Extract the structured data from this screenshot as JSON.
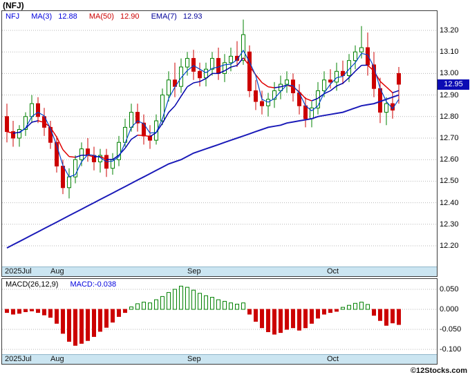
{
  "title": "(NFJ)",
  "watermark": "©12Stocks.com",
  "main_chart": {
    "legend": {
      "symbol": "NFJ",
      "ma3_label": "MA(3)",
      "ma3_value": "12.88",
      "ma50_label": "MA(50)",
      "ma50_value": "12.90",
      "ema7_label": "EMA(7)",
      "ema7_value": "12.93"
    },
    "last_price_label": "12.95",
    "y_ticks": [
      "13.20",
      "13.10",
      "13.00",
      "12.90",
      "12.80",
      "12.70",
      "12.60",
      "12.50",
      "12.40",
      "12.30",
      "12.20"
    ],
    "x_ticks": [
      {
        "label": "2025Jul",
        "x": 4
      },
      {
        "label": "Aug",
        "x": 70
      },
      {
        "label": "Sep",
        "x": 268
      },
      {
        "label": "Oct",
        "x": 470
      }
    ]
  },
  "macd_panel": {
    "legend_label": "MACD(26,12,9)",
    "legend_value": "MACD:-0.038",
    "y_ticks": [
      "0.050",
      "0.000",
      "-0.050",
      "-0.100"
    ]
  },
  "chart_data": {
    "type": "candlestick",
    "symbol": "NFJ",
    "title": "(NFJ)",
    "price_axis_range": [
      12.15,
      13.29
    ],
    "macd_axis_range": [
      -0.115,
      0.075
    ],
    "x_axis_months": [
      "2025Jul",
      "Aug",
      "Sep",
      "Oct"
    ],
    "last_close": 12.95,
    "indicators": {
      "ma3": 12.88,
      "ma50": 12.9,
      "ema7": 12.93,
      "macd_26_12_9": -0.038
    },
    "candles": [
      [
        12.8,
        12.86,
        12.68,
        12.73
      ],
      [
        12.73,
        12.78,
        12.66,
        12.7
      ],
      [
        12.7,
        12.76,
        12.66,
        12.74
      ],
      [
        12.74,
        12.82,
        12.71,
        12.8
      ],
      [
        12.8,
        12.9,
        12.77,
        12.86
      ],
      [
        12.86,
        12.89,
        12.77,
        12.8
      ],
      [
        12.8,
        12.84,
        12.71,
        12.75
      ],
      [
        12.75,
        12.78,
        12.65,
        12.68
      ],
      [
        12.68,
        12.71,
        12.54,
        12.57
      ],
      [
        12.57,
        12.6,
        12.44,
        12.47
      ],
      [
        12.47,
        12.56,
        12.42,
        12.52
      ],
      [
        12.52,
        12.62,
        12.49,
        12.6
      ],
      [
        12.6,
        12.68,
        12.57,
        12.65
      ],
      [
        12.65,
        12.7,
        12.59,
        12.62
      ],
      [
        12.62,
        12.66,
        12.55,
        12.59
      ],
      [
        12.59,
        12.65,
        12.54,
        12.62
      ],
      [
        12.62,
        12.65,
        12.52,
        12.56
      ],
      [
        12.56,
        12.63,
        12.53,
        12.6
      ],
      [
        12.6,
        12.71,
        12.57,
        12.68
      ],
      [
        12.68,
        12.79,
        12.66,
        12.75
      ],
      [
        12.75,
        12.86,
        12.73,
        12.82
      ],
      [
        12.82,
        12.86,
        12.73,
        12.77
      ],
      [
        12.77,
        12.81,
        12.67,
        12.71
      ],
      [
        12.71,
        12.76,
        12.65,
        12.69
      ],
      [
        12.69,
        12.81,
        12.67,
        12.78
      ],
      [
        12.78,
        12.93,
        12.76,
        12.9
      ],
      [
        12.9,
        13.01,
        12.87,
        12.97
      ],
      [
        12.97,
        13.05,
        12.89,
        12.94
      ],
      [
        12.94,
        13.07,
        12.91,
        13.03
      ],
      [
        13.03,
        13.1,
        12.99,
        13.07
      ],
      [
        13.07,
        13.11,
        12.97,
        13.01
      ],
      [
        13.01,
        13.05,
        12.94,
        12.98
      ],
      [
        12.98,
        13.05,
        12.94,
        13.02
      ],
      [
        13.02,
        13.1,
        12.99,
        13.07
      ],
      [
        13.07,
        13.12,
        12.97,
        13.0
      ],
      [
        13.0,
        13.09,
        12.96,
        13.05
      ],
      [
        13.05,
        13.12,
        13.01,
        13.08
      ],
      [
        13.08,
        13.15,
        13.03,
        13.06
      ],
      [
        13.06,
        13.25,
        13.04,
        13.18
      ],
      [
        13.1,
        13.13,
        12.89,
        12.92
      ],
      [
        12.92,
        12.97,
        12.83,
        12.87
      ],
      [
        12.87,
        12.92,
        12.81,
        12.85
      ],
      [
        12.85,
        12.91,
        12.8,
        12.88
      ],
      [
        12.88,
        12.96,
        12.84,
        12.92
      ],
      [
        12.92,
        12.99,
        12.88,
        12.95
      ],
      [
        12.95,
        13.01,
        12.91,
        12.97
      ],
      [
        12.97,
        13.0,
        12.87,
        12.91
      ],
      [
        12.91,
        12.95,
        12.81,
        12.85
      ],
      [
        12.85,
        12.89,
        12.75,
        12.79
      ],
      [
        12.79,
        12.87,
        12.75,
        12.84
      ],
      [
        12.84,
        12.96,
        12.81,
        12.92
      ],
      [
        12.92,
        13.01,
        12.89,
        12.97
      ],
      [
        12.97,
        13.02,
        12.93,
        12.96
      ],
      [
        12.96,
        13.05,
        12.92,
        13.01
      ],
      [
        13.01,
        13.06,
        12.95,
        12.99
      ],
      [
        12.99,
        13.09,
        12.96,
        13.06
      ],
      [
        13.06,
        13.13,
        13.02,
        13.1
      ],
      [
        13.1,
        13.22,
        13.07,
        13.12
      ],
      [
        13.12,
        13.19,
        12.99,
        13.04
      ],
      [
        13.04,
        13.1,
        12.89,
        12.93
      ],
      [
        12.93,
        12.98,
        12.77,
        12.82
      ],
      [
        12.82,
        12.89,
        12.76,
        12.86
      ],
      [
        12.86,
        12.91,
        12.79,
        12.83
      ],
      [
        13.0,
        13.03,
        12.86,
        12.95
      ]
    ],
    "ma50": [
      12.19,
      12.205,
      12.22,
      12.235,
      12.25,
      12.265,
      12.28,
      12.295,
      12.31,
      12.325,
      12.34,
      12.355,
      12.37,
      12.385,
      12.4,
      12.415,
      12.43,
      12.445,
      12.46,
      12.475,
      12.49,
      12.505,
      12.52,
      12.535,
      12.55,
      12.565,
      12.58,
      12.59,
      12.6,
      12.615,
      12.63,
      12.64,
      12.65,
      12.66,
      12.67,
      12.68,
      12.69,
      12.7,
      12.71,
      12.72,
      12.73,
      12.74,
      12.75,
      12.755,
      12.76,
      12.77,
      12.775,
      12.78,
      12.785,
      12.79,
      12.8,
      12.805,
      12.81,
      12.815,
      12.82,
      12.83,
      12.84,
      12.85,
      12.855,
      12.86,
      12.87,
      12.88,
      12.89,
      12.9
    ],
    "macd_histogram": [
      -0.008,
      -0.012,
      -0.01,
      -0.006,
      -0.004,
      -0.008,
      -0.014,
      -0.02,
      -0.035,
      -0.06,
      -0.08,
      -0.09,
      -0.085,
      -0.078,
      -0.068,
      -0.055,
      -0.045,
      -0.032,
      -0.018,
      -0.008,
      0.006,
      0.014,
      0.018,
      0.016,
      0.024,
      0.032,
      0.042,
      0.05,
      0.058,
      0.055,
      0.048,
      0.04,
      0.034,
      0.03,
      0.024,
      0.02,
      0.016,
      0.013,
      0.016,
      -0.012,
      -0.03,
      -0.046,
      -0.056,
      -0.062,
      -0.058,
      -0.05,
      -0.046,
      -0.052,
      -0.046,
      -0.035,
      -0.022,
      -0.012,
      -0.008,
      -0.005,
      0.005,
      0.01,
      0.015,
      0.018,
      0.012,
      -0.015,
      -0.028,
      -0.04,
      -0.034,
      -0.038
    ],
    "colors": {
      "up": "#008000",
      "down": "#cc0000",
      "ma3": "#0044cc",
      "ema7": "#0000aa",
      "ema7_falling": "#e00000",
      "ma50": "#1a1ab8",
      "macd_up": "#008000",
      "macd_down": "#cc0000",
      "grid": "#b5b5b5",
      "axis_strip": "#cbe5f1",
      "badge_bg": "#0c0cb4",
      "legend_blue": "#0000dd",
      "legend_red": "#cc0000",
      "legend_navy": "#000099"
    }
  }
}
